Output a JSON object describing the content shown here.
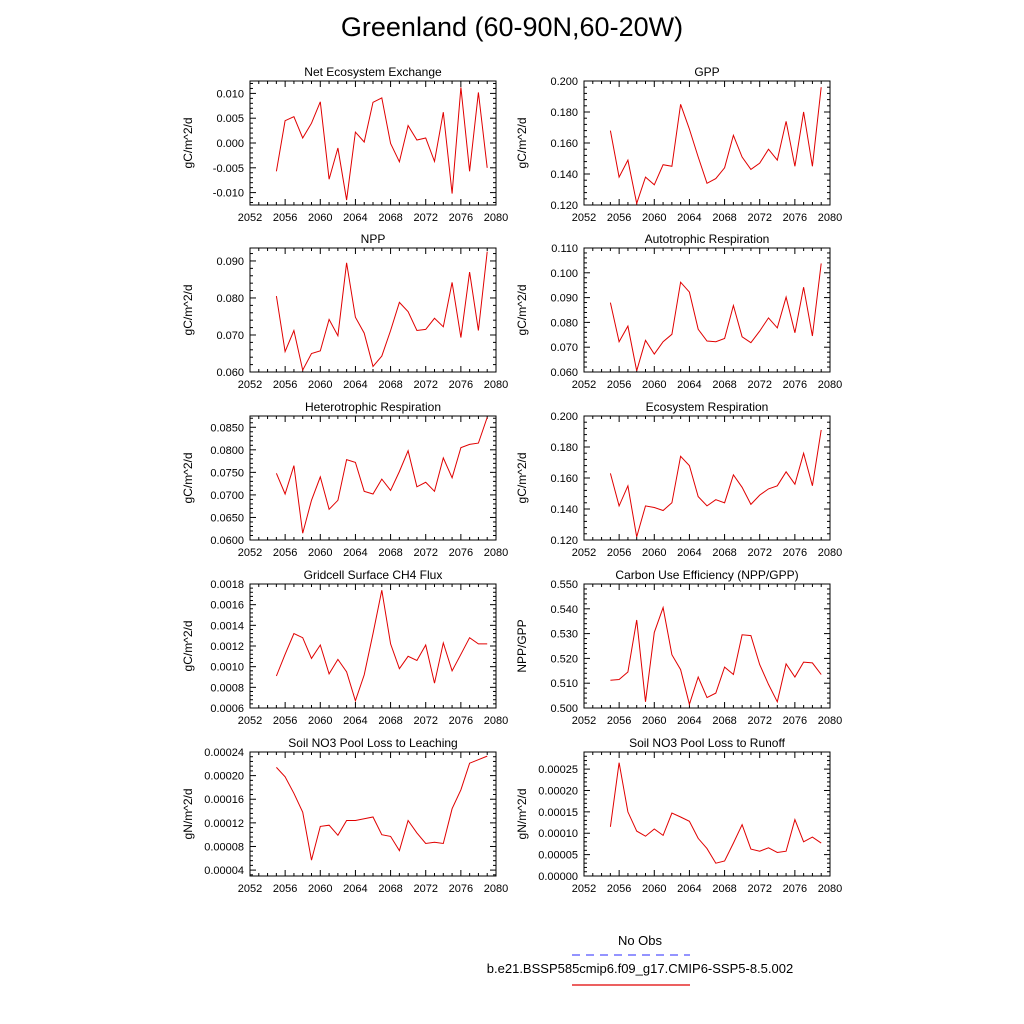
{
  "title": "Greenland (60-90N,60-20W)",
  "legend": {
    "obs_label": "No Obs",
    "obs_color": "#5555ff",
    "model_label": "b.e21.BSSP585cmip6.f09_g17.CMIP6-SSP5-8.5.002",
    "model_color": "#e00000"
  },
  "chart_data": [
    {
      "type": "line",
      "title": "Net Ecosystem Exchange",
      "ylabel": "gC/m^2/d",
      "xlim": [
        2052,
        2080
      ],
      "xticks": [
        2052,
        2056,
        2060,
        2064,
        2068,
        2072,
        2076,
        2080
      ],
      "xtick_labels": [
        "2052",
        "2056",
        "2060",
        "2064",
        "2068",
        "2072",
        "2076",
        "2080"
      ],
      "ylim": [
        -0.0125,
        0.0125
      ],
      "yticks": [
        -0.01,
        -0.005,
        0.0,
        0.005,
        0.01
      ],
      "ytick_labels": [
        "-0.010",
        "-0.005",
        "0.000",
        "0.005",
        "0.010"
      ],
      "x": [
        2055,
        2056,
        2057,
        2058,
        2059,
        2060,
        2061,
        2062,
        2063,
        2064,
        2065,
        2066,
        2067,
        2068,
        2069,
        2070,
        2071,
        2072,
        2073,
        2074,
        2075,
        2076,
        2077,
        2078,
        2079
      ],
      "series": [
        {
          "values": [
            -0.0057,
            0.0045,
            0.0053,
            0.001,
            0.004,
            0.0083,
            -0.0073,
            -0.001,
            -0.0115,
            0.0022,
            0.0002,
            0.0082,
            0.0091,
            -0.0001,
            -0.0038,
            0.0035,
            0.0006,
            0.001,
            -0.0037,
            0.0062,
            -0.0102,
            0.0112,
            -0.0057,
            0.0102,
            -0.005
          ]
        }
      ]
    },
    {
      "type": "line",
      "title": "GPP",
      "ylabel": "gC/m^2/d",
      "xlim": [
        2052,
        2080
      ],
      "xticks": [
        2052,
        2056,
        2060,
        2064,
        2068,
        2072,
        2076,
        2080
      ],
      "xtick_labels": [
        "2052",
        "2056",
        "2060",
        "2064",
        "2068",
        "2072",
        "2076",
        "2080"
      ],
      "ylim": [
        0.12,
        0.2
      ],
      "yticks": [
        0.12,
        0.14,
        0.16,
        0.18,
        0.2
      ],
      "ytick_labels": [
        "0.120",
        "0.140",
        "0.160",
        "0.180",
        "0.200"
      ],
      "x": [
        2055,
        2056,
        2057,
        2058,
        2059,
        2060,
        2061,
        2062,
        2063,
        2064,
        2065,
        2066,
        2067,
        2068,
        2069,
        2070,
        2071,
        2072,
        2073,
        2074,
        2075,
        2076,
        2077,
        2078,
        2079
      ],
      "series": [
        {
          "values": [
            0.168,
            0.138,
            0.149,
            0.121,
            0.138,
            0.133,
            0.146,
            0.145,
            0.185,
            0.169,
            0.151,
            0.134,
            0.137,
            0.144,
            0.165,
            0.151,
            0.143,
            0.147,
            0.156,
            0.149,
            0.174,
            0.145,
            0.18,
            0.145,
            0.196
          ]
        }
      ]
    },
    {
      "type": "line",
      "title": "NPP",
      "ylabel": "gC/m^2/d",
      "xlim": [
        2052,
        2080
      ],
      "xticks": [
        2052,
        2056,
        2060,
        2064,
        2068,
        2072,
        2076,
        2080
      ],
      "xtick_labels": [
        "2052",
        "2056",
        "2060",
        "2064",
        "2068",
        "2072",
        "2076",
        "2080"
      ],
      "ylim": [
        0.06,
        0.0935
      ],
      "yticks": [
        0.06,
        0.07,
        0.08,
        0.09
      ],
      "ytick_labels": [
        "0.060",
        "0.070",
        "0.080",
        "0.090"
      ],
      "x": [
        2055,
        2056,
        2057,
        2058,
        2059,
        2060,
        2061,
        2062,
        2063,
        2064,
        2065,
        2066,
        2067,
        2068,
        2069,
        2070,
        2071,
        2072,
        2073,
        2074,
        2075,
        2076,
        2077,
        2078,
        2079
      ],
      "series": [
        {
          "values": [
            0.0805,
            0.0655,
            0.0712,
            0.0605,
            0.065,
            0.0657,
            0.0742,
            0.0698,
            0.0895,
            0.0748,
            0.0705,
            0.0615,
            0.0643,
            0.0712,
            0.0788,
            0.0763,
            0.0712,
            0.0715,
            0.0745,
            0.0722,
            0.0842,
            0.0693,
            0.087,
            0.0712,
            0.0925
          ]
        }
      ]
    },
    {
      "type": "line",
      "title": "Autotrophic Respiration",
      "ylabel": "gC/m^2/d",
      "xlim": [
        2052,
        2080
      ],
      "xticks": [
        2052,
        2056,
        2060,
        2064,
        2068,
        2072,
        2076,
        2080
      ],
      "xtick_labels": [
        "2052",
        "2056",
        "2060",
        "2064",
        "2068",
        "2072",
        "2076",
        "2080"
      ],
      "ylim": [
        0.06,
        0.11
      ],
      "yticks": [
        0.06,
        0.07,
        0.08,
        0.09,
        0.1,
        0.11
      ],
      "ytick_labels": [
        "0.060",
        "0.070",
        "0.080",
        "0.090",
        "0.100",
        "0.110"
      ],
      "x": [
        2055,
        2056,
        2057,
        2058,
        2059,
        2060,
        2061,
        2062,
        2063,
        2064,
        2065,
        2066,
        2067,
        2068,
        2069,
        2070,
        2071,
        2072,
        2073,
        2074,
        2075,
        2076,
        2077,
        2078,
        2079
      ],
      "series": [
        {
          "values": [
            0.088,
            0.0722,
            0.0785,
            0.0605,
            0.0728,
            0.0672,
            0.0722,
            0.0752,
            0.0962,
            0.0922,
            0.0772,
            0.0725,
            0.0722,
            0.0735,
            0.0868,
            0.0742,
            0.0718,
            0.0765,
            0.0818,
            0.0778,
            0.0902,
            0.0758,
            0.0942,
            0.0745,
            0.1038
          ]
        }
      ]
    },
    {
      "type": "line",
      "title": "Heterotrophic Respiration",
      "ylabel": "gC/m^2/d",
      "xlim": [
        2052,
        2080
      ],
      "xticks": [
        2052,
        2056,
        2060,
        2064,
        2068,
        2072,
        2076,
        2080
      ],
      "xtick_labels": [
        "2052",
        "2056",
        "2060",
        "2064",
        "2068",
        "2072",
        "2076",
        "2080"
      ],
      "ylim": [
        0.06,
        0.0875
      ],
      "yticks": [
        0.06,
        0.065,
        0.07,
        0.075,
        0.08,
        0.085
      ],
      "ytick_labels": [
        "0.0600",
        "0.0650",
        "0.0700",
        "0.0750",
        "0.0800",
        "0.0850"
      ],
      "x": [
        2055,
        2056,
        2057,
        2058,
        2059,
        2060,
        2061,
        2062,
        2063,
        2064,
        2065,
        2066,
        2067,
        2068,
        2069,
        2070,
        2071,
        2072,
        2073,
        2074,
        2075,
        2076,
        2077,
        2078,
        2079
      ],
      "series": [
        {
          "values": [
            0.0748,
            0.0702,
            0.0765,
            0.0615,
            0.0688,
            0.074,
            0.0668,
            0.0688,
            0.0778,
            0.0772,
            0.0708,
            0.0702,
            0.0735,
            0.071,
            0.0752,
            0.0798,
            0.0718,
            0.0728,
            0.0708,
            0.0782,
            0.0738,
            0.0805,
            0.0812,
            0.0815,
            0.0872
          ]
        }
      ]
    },
    {
      "type": "line",
      "title": "Ecosystem Respiration",
      "ylabel": "gC/m^2/d",
      "xlim": [
        2052,
        2080
      ],
      "xticks": [
        2052,
        2056,
        2060,
        2064,
        2068,
        2072,
        2076,
        2080
      ],
      "xtick_labels": [
        "2052",
        "2056",
        "2060",
        "2064",
        "2068",
        "2072",
        "2076",
        "2080"
      ],
      "ylim": [
        0.12,
        0.2
      ],
      "yticks": [
        0.12,
        0.14,
        0.16,
        0.18,
        0.2
      ],
      "ytick_labels": [
        "0.120",
        "0.140",
        "0.160",
        "0.180",
        "0.200"
      ],
      "x": [
        2055,
        2056,
        2057,
        2058,
        2059,
        2060,
        2061,
        2062,
        2063,
        2064,
        2065,
        2066,
        2067,
        2068,
        2069,
        2070,
        2071,
        2072,
        2073,
        2074,
        2075,
        2076,
        2077,
        2078,
        2079
      ],
      "series": [
        {
          "values": [
            0.163,
            0.142,
            0.155,
            0.122,
            0.142,
            0.141,
            0.139,
            0.144,
            0.174,
            0.168,
            0.148,
            0.142,
            0.146,
            0.144,
            0.162,
            0.154,
            0.143,
            0.149,
            0.153,
            0.155,
            0.164,
            0.156,
            0.176,
            0.155,
            0.191
          ]
        }
      ]
    },
    {
      "type": "line",
      "title": "Gridcell Surface CH4 Flux",
      "ylabel": "gC/m^2/d",
      "xlim": [
        2052,
        2080
      ],
      "xticks": [
        2052,
        2056,
        2060,
        2064,
        2068,
        2072,
        2076,
        2080
      ],
      "xtick_labels": [
        "2052",
        "2056",
        "2060",
        "2064",
        "2068",
        "2072",
        "2076",
        "2080"
      ],
      "ylim": [
        0.0006,
        0.0018
      ],
      "yticks": [
        0.0006,
        0.0008,
        0.001,
        0.0012,
        0.0014,
        0.0016,
        0.0018
      ],
      "ytick_labels": [
        "0.0006",
        "0.0008",
        "0.0010",
        "0.0012",
        "0.0014",
        "0.0016",
        "0.0018"
      ],
      "x": [
        2055,
        2056,
        2057,
        2058,
        2059,
        2060,
        2061,
        2062,
        2063,
        2064,
        2065,
        2066,
        2067,
        2068,
        2069,
        2070,
        2071,
        2072,
        2073,
        2074,
        2075,
        2076,
        2077,
        2078,
        2079
      ],
      "series": [
        {
          "values": [
            0.00091,
            0.00112,
            0.00132,
            0.00128,
            0.00108,
            0.00121,
            0.00093,
            0.00107,
            0.00095,
            0.00067,
            0.00092,
            0.00132,
            0.00174,
            0.00122,
            0.00098,
            0.0011,
            0.00106,
            0.00121,
            0.00084,
            0.00123,
            0.00096,
            0.00112,
            0.00128,
            0.00122,
            0.00122
          ]
        }
      ]
    },
    {
      "type": "line",
      "title": "Carbon Use Efficiency (NPP/GPP)",
      "ylabel": "NPP/GPP",
      "xlim": [
        2052,
        2080
      ],
      "xticks": [
        2052,
        2056,
        2060,
        2064,
        2068,
        2072,
        2076,
        2080
      ],
      "xtick_labels": [
        "2052",
        "2056",
        "2060",
        "2064",
        "2068",
        "2072",
        "2076",
        "2080"
      ],
      "ylim": [
        0.5,
        0.55
      ],
      "yticks": [
        0.5,
        0.51,
        0.52,
        0.53,
        0.54,
        0.55
      ],
      "ytick_labels": [
        "0.500",
        "0.510",
        "0.520",
        "0.530",
        "0.540",
        "0.550"
      ],
      "x": [
        2055,
        2056,
        2057,
        2058,
        2059,
        2060,
        2061,
        2062,
        2063,
        2064,
        2065,
        2066,
        2067,
        2068,
        2069,
        2070,
        2071,
        2072,
        2073,
        2074,
        2075,
        2076,
        2077,
        2078,
        2079
      ],
      "series": [
        {
          "values": [
            0.5112,
            0.5115,
            0.5145,
            0.5355,
            0.5025,
            0.5305,
            0.5405,
            0.5215,
            0.5155,
            0.5015,
            0.5125,
            0.5042,
            0.506,
            0.5165,
            0.5135,
            0.5295,
            0.5292,
            0.5175,
            0.5095,
            0.5025,
            0.5178,
            0.5125,
            0.5185,
            0.5182,
            0.5135
          ]
        }
      ]
    },
    {
      "type": "line",
      "title": "Soil NO3 Pool Loss to Leaching",
      "ylabel": "gN/m^2/d",
      "xlim": [
        2052,
        2080
      ],
      "xticks": [
        2052,
        2056,
        2060,
        2064,
        2068,
        2072,
        2076,
        2080
      ],
      "xtick_labels": [
        "2052",
        "2056",
        "2060",
        "2064",
        "2068",
        "2072",
        "2076",
        "2080"
      ],
      "ylim": [
        3e-05,
        0.00024
      ],
      "yticks": [
        4e-05,
        8e-05,
        0.00012,
        0.00016,
        0.0002,
        0.00024
      ],
      "ytick_labels": [
        "0.00004",
        "0.00008",
        "0.00012",
        "0.00016",
        "0.00020",
        "0.00024"
      ],
      "x": [
        2055,
        2056,
        2057,
        2058,
        2059,
        2060,
        2061,
        2062,
        2063,
        2064,
        2065,
        2066,
        2067,
        2068,
        2069,
        2070,
        2071,
        2072,
        2073,
        2074,
        2075,
        2076,
        2077,
        2078,
        2079
      ],
      "series": [
        {
          "values": [
            0.000214,
            0.000198,
            0.00017,
            0.000138,
            5.7e-05,
            0.000114,
            0.000116,
            9.9e-05,
            0.000124,
            0.000124,
            0.000127,
            0.00013,
            0.0001,
            9.7e-05,
            7.3e-05,
            0.000124,
            0.000103,
            8.5e-05,
            8.7e-05,
            8.5e-05,
            0.000144,
            0.000176,
            0.000221,
            0.000227,
            0.000233
          ]
        }
      ]
    },
    {
      "type": "line",
      "title": "Soil NO3 Pool Loss to Runoff",
      "ylabel": "gN/m^2/d",
      "xlim": [
        2052,
        2080
      ],
      "xticks": [
        2052,
        2056,
        2060,
        2064,
        2068,
        2072,
        2076,
        2080
      ],
      "xtick_labels": [
        "2052",
        "2056",
        "2060",
        "2064",
        "2068",
        "2072",
        "2076",
        "2080"
      ],
      "ylim": [
        0.0,
        0.00029
      ],
      "yticks": [
        0.0,
        5e-05,
        0.0001,
        0.00015,
        0.0002,
        0.00025
      ],
      "ytick_labels": [
        "0.00000",
        "0.00005",
        "0.00010",
        "0.00015",
        "0.00020",
        "0.00025"
      ],
      "x": [
        2055,
        2056,
        2057,
        2058,
        2059,
        2060,
        2061,
        2062,
        2063,
        2064,
        2065,
        2066,
        2067,
        2068,
        2069,
        2070,
        2071,
        2072,
        2073,
        2074,
        2075,
        2076,
        2077,
        2078,
        2079
      ],
      "series": [
        {
          "values": [
            0.000115,
            0.000265,
            0.00015,
            0.000105,
            9.3e-05,
            0.00011,
            9.5e-05,
            0.000147,
            0.000138,
            0.000128,
            8.8e-05,
            6.4e-05,
            3e-05,
            3.5e-05,
            7.7e-05,
            0.00012,
            6.3e-05,
            5.8e-05,
            6.6e-05,
            5.5e-05,
            5.8e-05,
            0.000132,
            8e-05,
            9.1e-05,
            7.7e-05
          ]
        }
      ]
    }
  ]
}
